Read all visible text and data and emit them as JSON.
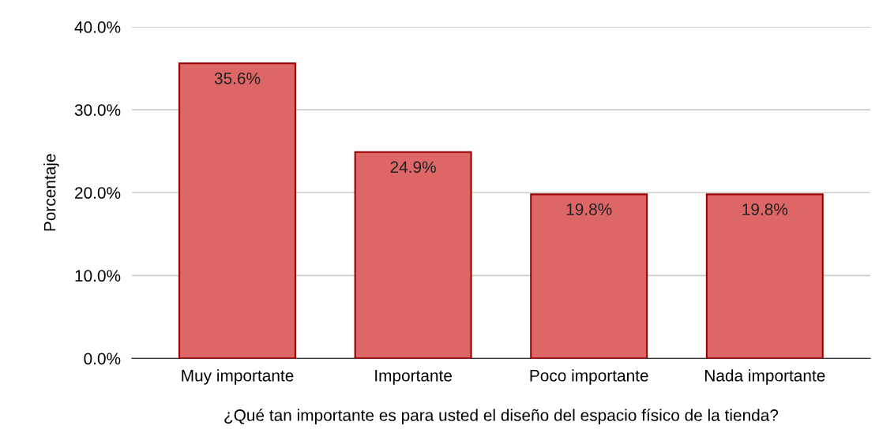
{
  "chart_data": {
    "type": "bar",
    "xlabel": "¿Qué tan importante es para usted el diseño del espacio físico de la tienda?",
    "ylabel": "Porcentaje",
    "categories": [
      "Muy importante",
      "Importante",
      "Poco importante",
      "Nada importante"
    ],
    "values": [
      35.6,
      24.9,
      19.8,
      19.8
    ],
    "value_labels": [
      "35.6%",
      "24.9%",
      "19.8%",
      "19.8%"
    ],
    "color": "#dd6666",
    "ylim": [
      0,
      40
    ],
    "yticks": [
      {
        "value": 0,
        "label": "0.0%"
      },
      {
        "value": 10,
        "label": "10.0%"
      },
      {
        "value": 20,
        "label": "20.0%"
      },
      {
        "value": 30,
        "label": "30.0%"
      },
      {
        "value": 40,
        "label": "40.0%"
      }
    ],
    "grid": "y",
    "legend": false
  }
}
